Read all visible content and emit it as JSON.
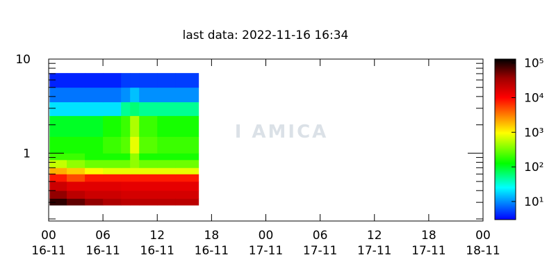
{
  "chart_data": {
    "type": "heatmap",
    "title": "last data: 2022-11-16 16:34",
    "watermark": "I AMICA",
    "x": [
      0.1,
      2,
      4,
      6,
      8,
      9,
      10,
      12,
      14,
      16.57
    ],
    "y": [
      0.28,
      0.33,
      0.4,
      0.5,
      0.6,
      0.7,
      0.85,
      1,
      1.5,
      2.5,
      3.5,
      5,
      7.1
    ],
    "values": [
      [
        90000,
        60000,
        40000,
        30000,
        25000,
        25000,
        25000,
        25000,
        25000
      ],
      [
        40000,
        25000,
        20000,
        20000,
        18000,
        18000,
        18000,
        18000,
        18000
      ],
      [
        20000,
        15000,
        15000,
        15000,
        14000,
        14000,
        14000,
        14000,
        14000
      ],
      [
        8000,
        5000,
        8000,
        8000,
        8000,
        8000,
        8000,
        8000,
        8000
      ],
      [
        2000,
        1500,
        1000,
        800,
        800,
        800,
        800,
        800,
        800
      ],
      [
        600,
        400,
        300,
        300,
        300,
        400,
        300,
        300,
        300
      ],
      [
        200,
        200,
        150,
        150,
        150,
        400,
        150,
        150,
        150
      ],
      [
        150,
        150,
        150,
        200,
        250,
        800,
        250,
        200,
        200
      ],
      [
        100,
        100,
        100,
        150,
        200,
        500,
        200,
        150,
        150
      ],
      [
        20,
        20,
        20,
        20,
        50,
        60,
        50,
        50,
        50
      ],
      [
        8,
        8,
        8,
        8,
        10,
        15,
        10,
        10,
        10
      ],
      [
        4,
        4,
        4,
        4,
        5,
        5,
        5,
        5,
        5
      ]
    ],
    "xlim": [
      0,
      48
    ],
    "xticks": [
      {
        "value": 0,
        "label": "00",
        "date": "16-11"
      },
      {
        "value": 6,
        "label": "06",
        "date": "16-11"
      },
      {
        "value": 12,
        "label": "12",
        "date": "16-11"
      },
      {
        "value": 18,
        "label": "18",
        "date": "16-11"
      },
      {
        "value": 24,
        "label": "00",
        "date": "17-11"
      },
      {
        "value": 30,
        "label": "06",
        "date": "17-11"
      },
      {
        "value": 36,
        "label": "12",
        "date": "17-11"
      },
      {
        "value": 42,
        "label": "18",
        "date": "17-11"
      },
      {
        "value": 48,
        "label": "00",
        "date": "18-11"
      }
    ],
    "ylim": [
      0.19,
      10
    ],
    "ylog": true,
    "yticks": [
      1,
      10
    ],
    "yminorticks": [
      0.2,
      0.3,
      0.4,
      0.5,
      0.6,
      0.7,
      0.8,
      0.9,
      2,
      3,
      4,
      5,
      6,
      7,
      8,
      9
    ],
    "clim": [
      3,
      130000
    ],
    "cticks": [
      {
        "value": 10,
        "label": "10¹"
      },
      {
        "value": 100,
        "label": "10²"
      },
      {
        "value": 1000,
        "label": "10³"
      },
      {
        "value": 10000,
        "label": "10⁴"
      },
      {
        "value": 100000,
        "label": "10⁵"
      }
    ],
    "colorscale": [
      [
        0,
        "#0000ff"
      ],
      [
        0.2,
        "#00ffff"
      ],
      [
        0.35,
        "#00ff00"
      ],
      [
        0.54,
        "#ffff00"
      ],
      [
        0.65,
        "#ff8000"
      ],
      [
        0.76,
        "#ff0000"
      ],
      [
        0.88,
        "#a00000"
      ],
      [
        1,
        "#000000"
      ]
    ]
  }
}
